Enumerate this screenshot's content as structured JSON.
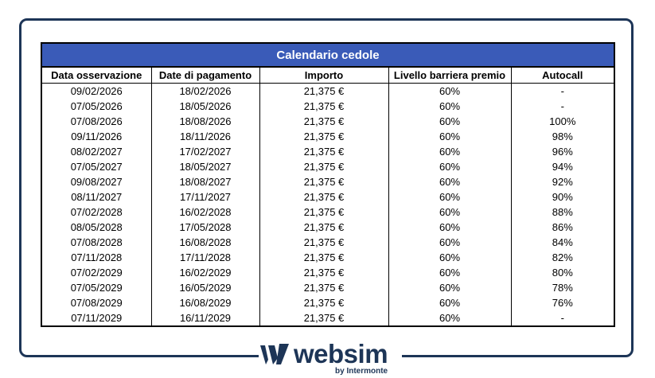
{
  "table": {
    "title": "Calendario cedole",
    "columns": [
      "Data osservazione",
      "Date di pagamento",
      "Importo",
      "Livello barriera premio",
      "Autocall"
    ],
    "rows": [
      [
        "09/02/2026",
        "18/02/2026",
        "21,375 €",
        "60%",
        "-"
      ],
      [
        "07/05/2026",
        "18/05/2026",
        "21,375 €",
        "60%",
        "-"
      ],
      [
        "07/08/2026",
        "18/08/2026",
        "21,375 €",
        "60%",
        "100%"
      ],
      [
        "09/11/2026",
        "18/11/2026",
        "21,375 €",
        "60%",
        "98%"
      ],
      [
        "08/02/2027",
        "17/02/2027",
        "21,375 €",
        "60%",
        "96%"
      ],
      [
        "07/05/2027",
        "18/05/2027",
        "21,375 €",
        "60%",
        "94%"
      ],
      [
        "09/08/2027",
        "18/08/2027",
        "21,375 €",
        "60%",
        "92%"
      ],
      [
        "08/11/2027",
        "17/11/2027",
        "21,375 €",
        "60%",
        "90%"
      ],
      [
        "07/02/2028",
        "16/02/2028",
        "21,375 €",
        "60%",
        "88%"
      ],
      [
        "08/05/2028",
        "17/05/2028",
        "21,375 €",
        "60%",
        "86%"
      ],
      [
        "07/08/2028",
        "16/08/2028",
        "21,375 €",
        "60%",
        "84%"
      ],
      [
        "07/11/2028",
        "17/11/2028",
        "21,375 €",
        "60%",
        "82%"
      ],
      [
        "07/02/2029",
        "16/02/2029",
        "21,375 €",
        "60%",
        "80%"
      ],
      [
        "07/05/2029",
        "16/05/2029",
        "21,375 €",
        "60%",
        "78%"
      ],
      [
        "07/08/2029",
        "16/08/2029",
        "21,375 €",
        "60%",
        "76%"
      ],
      [
        "07/11/2029",
        "16/11/2029",
        "21,375 €",
        "60%",
        "-"
      ]
    ]
  },
  "logo": {
    "word": "websim",
    "tagline": "by Intermonte"
  },
  "colors": {
    "header_bg": "#3a5bb8",
    "frame": "#1d3557"
  }
}
